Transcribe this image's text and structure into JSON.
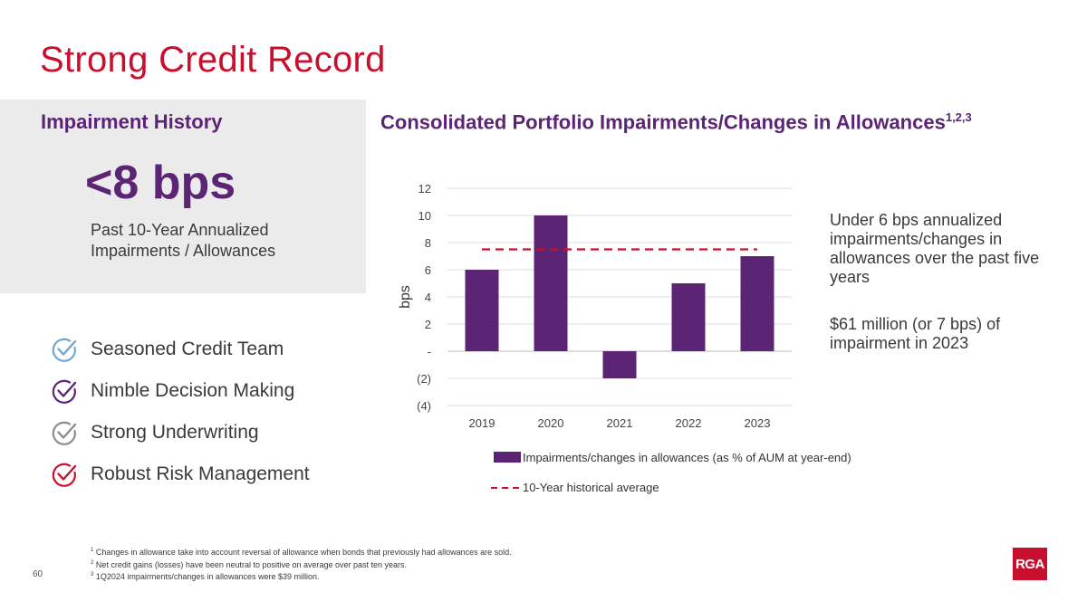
{
  "slide": {
    "title": "Strong Credit Record",
    "page_number": "60"
  },
  "impairment": {
    "heading": "Impairment History",
    "stat": "<8 bps",
    "caption": "Past 10-Year Annualized Impairments / Allowances"
  },
  "checklist": [
    {
      "label": "Seasoned Credit Team",
      "color": "#6fa8d6"
    },
    {
      "label": "Nimble Decision Making",
      "color": "#5b2474"
    },
    {
      "label": "Strong Underwriting",
      "color": "#8c8c8c"
    },
    {
      "label": "Robust Risk Management",
      "color": "#c8102e"
    }
  ],
  "chart_heading": {
    "text": "Consolidated Portfolio Impairments/Changes in Allowances",
    "superscript": "1,2,3"
  },
  "notes": [
    "Under 6 bps annualized impairments/changes in allowances over the past five years",
    "$61 million (or 7 bps) of impairment in 2023"
  ],
  "footnotes": [
    {
      "num": "1",
      "text": "Changes in allowance take into account reversal of allowance when bonds that previously had allowances are sold."
    },
    {
      "num": "2",
      "text": "Net credit gains (losses) have been neutral to positive on average over past ten years."
    },
    {
      "num": "3",
      "text": "1Q2024 impairments/changes in allowances were $39 million."
    }
  ],
  "logo": {
    "text": "RGA",
    "color": "#c8102e"
  },
  "chart_data": {
    "type": "bar",
    "categories": [
      "2019",
      "2020",
      "2021",
      "2022",
      "2023"
    ],
    "series": [
      {
        "name": "Impairments/changes in allowances (as % of AUM at year-end)",
        "values": [
          6,
          10,
          -2,
          5,
          7
        ],
        "color": "#5b2474"
      }
    ],
    "reference_line": {
      "name": "10-Year historical average",
      "value": 7.5,
      "color": "#c8102e",
      "style": "dashed"
    },
    "ylabel": "bps",
    "ylim": [
      -4,
      12
    ],
    "yticks": [
      12,
      10,
      8,
      6,
      4,
      2,
      0,
      -2,
      -4
    ],
    "ytick_labels": [
      "12",
      "10",
      "8",
      "6",
      "4",
      "2",
      "-",
      "(2)",
      "(4)"
    ],
    "grid": true,
    "legend_position": "bottom"
  }
}
